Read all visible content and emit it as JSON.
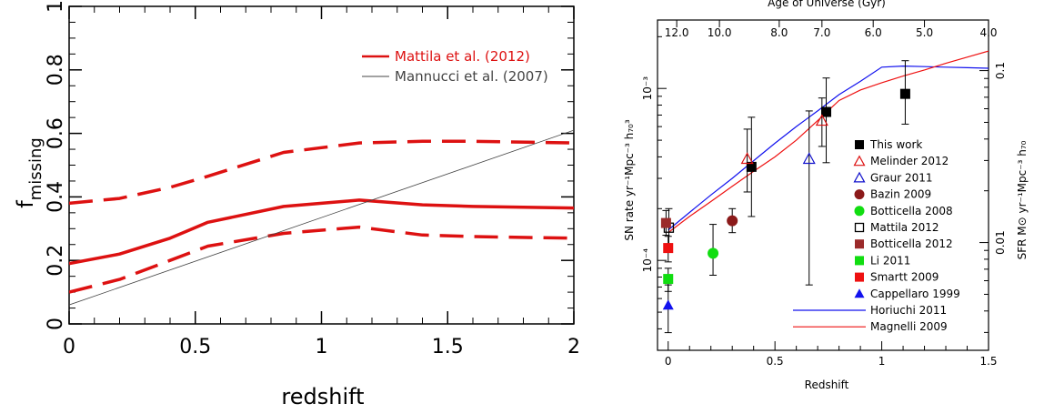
{
  "chart_data": [
    {
      "type": "line",
      "title": "",
      "xlabel": "redshift",
      "ylabel_main": "f",
      "ylabel_sub": "missing",
      "xlim": [
        0,
        2
      ],
      "ylim": [
        0,
        1
      ],
      "x_ticks": [
        0,
        0.5,
        1,
        1.5,
        2
      ],
      "x_tick_labels": [
        "0",
        "0.5",
        "1",
        "1.5",
        "2"
      ],
      "y_ticks": [
        0,
        0.2,
        0.4,
        0.6,
        0.8,
        1
      ],
      "y_tick_labels": [
        "0",
        "0.2",
        "0.4",
        "0.6",
        "0.8",
        "1"
      ],
      "legend_position": "top-right",
      "series": [
        {
          "name": "Mattila et al. (2012)",
          "style": "solid",
          "color": "#dd1111",
          "x": [
            0,
            0.2,
            0.4,
            0.55,
            0.85,
            1.0,
            1.15,
            1.4,
            1.6,
            2.0
          ],
          "y": [
            0.19,
            0.22,
            0.27,
            0.32,
            0.37,
            0.38,
            0.39,
            0.375,
            0.37,
            0.365
          ]
        },
        {
          "name": "",
          "style": "dashed",
          "color": "#dd1111",
          "x": [
            0,
            0.2,
            0.4,
            0.55,
            0.85,
            1.0,
            1.15,
            1.4,
            1.6,
            2.0
          ],
          "y": [
            0.38,
            0.395,
            0.43,
            0.465,
            0.54,
            0.555,
            0.57,
            0.575,
            0.575,
            0.57
          ]
        },
        {
          "name": "",
          "style": "dashed",
          "color": "#dd1111",
          "x": [
            0,
            0.2,
            0.4,
            0.55,
            0.85,
            1.0,
            1.15,
            1.4,
            1.6,
            2.0
          ],
          "y": [
            0.1,
            0.14,
            0.2,
            0.245,
            0.285,
            0.295,
            0.305,
            0.28,
            0.275,
            0.27
          ]
        },
        {
          "name": "Mannucci et al. (2007)",
          "style": "solid",
          "color": "#444444",
          "x": [
            0,
            2
          ],
          "y": [
            0.06,
            0.61
          ]
        }
      ]
    },
    {
      "type": "scatter",
      "title": "",
      "top_axis_label": "Age of Universe (Gyr)",
      "top_ticks": [
        {
          "z": 0.04,
          "label": "12.0"
        },
        {
          "z": 0.24,
          "label": "10.0"
        },
        {
          "z": 0.52,
          "label": "8.0"
        },
        {
          "z": 0.72,
          "label": "7.0"
        },
        {
          "z": 0.96,
          "label": "6.0"
        },
        {
          "z": 1.2,
          "label": "5.0"
        },
        {
          "z": 1.5,
          "label": "4.0"
        }
      ],
      "xlabel": "Redshift",
      "ylabel": "SN rate yr⁻¹Mpc⁻³ h₇₀³",
      "ylabel_right": "SFR M⊙ yr⁻¹Mpc⁻³ h₇₀",
      "xlim": [
        -0.05,
        1.5
      ],
      "ylim": [
        3e-05,
        0.0025
      ],
      "y_scale": "log",
      "x_ticks": [
        0,
        0.5,
        1,
        1.5
      ],
      "x_tick_labels": [
        "0",
        "0.5",
        "1",
        "1.5"
      ],
      "y_ticks_major": [
        0.0001,
        0.001
      ],
      "y_tick_labels": [
        "10⁻⁴",
        "10⁻³"
      ],
      "right_ticks": [
        {
          "rate": 0.000127,
          "label": "0.01"
        },
        {
          "rate": 0.00127,
          "label": "0.1"
        }
      ],
      "legend_position": "right",
      "series": [
        {
          "name": "This work",
          "marker": "square-filled",
          "color": "#000000",
          "points": [
            {
              "x": 0.39,
              "y": 0.00035,
              "lo": 0.00018,
              "hi": 0.00068
            },
            {
              "x": 0.74,
              "y": 0.00073,
              "lo": 0.00037,
              "hi": 0.00115
            },
            {
              "x": 1.11,
              "y": 0.00093,
              "lo": 0.00062,
              "hi": 0.00145
            }
          ]
        },
        {
          "name": "Melinder 2012",
          "marker": "triangle-open",
          "color": "#dd1111",
          "points": [
            {
              "x": 0.37,
              "y": 0.00039,
              "lo": 0.00025,
              "hi": 0.00058
            },
            {
              "x": 0.72,
              "y": 0.00065,
              "lo": 0.00046,
              "hi": 0.00088
            }
          ]
        },
        {
          "name": "Graur 2011",
          "marker": "triangle-open",
          "color": "#1111cc",
          "points": [
            {
              "x": 0.66,
              "y": 0.00039,
              "lo": 7.2e-05,
              "hi": 0.00074
            }
          ]
        },
        {
          "name": "Bazin 2009",
          "marker": "circle-filled",
          "color": "#8b1a1a",
          "points": [
            {
              "x": 0.3,
              "y": 0.00017,
              "lo": 0.000145,
              "hi": 0.0002
            }
          ]
        },
        {
          "name": "Botticella 2008",
          "marker": "circle-filled",
          "color": "#11dd11",
          "points": [
            {
              "x": 0.21,
              "y": 0.00011,
              "lo": 8.2e-05,
              "hi": 0.000162
            }
          ]
        },
        {
          "name": "Mattila 2012",
          "marker": "square-open",
          "color": "#000000",
          "points": [
            {
              "x": 0.003,
              "y": 0.000155,
              "lo": 0.000125,
              "hi": 0.0002
            }
          ]
        },
        {
          "name": "Botticella 2012",
          "marker": "square-filled",
          "color": "#9b2a2a",
          "points": [
            {
              "x": -0.01,
              "y": 0.000165,
              "lo": 0.00014,
              "hi": 0.000195
            }
          ]
        },
        {
          "name": "Li 2011",
          "marker": "square-filled",
          "color": "#11dd11",
          "points": [
            {
              "x": 0.0,
              "y": 7.8e-05,
              "lo": 6.6e-05,
              "hi": 9e-05
            }
          ]
        },
        {
          "name": "Smartt 2009",
          "marker": "square-filled",
          "color": "#ee1111",
          "points": [
            {
              "x": 0.0,
              "y": 0.000118,
              "lo": 9.8e-05,
              "hi": 0.000138
            }
          ]
        },
        {
          "name": "Cappellaro 1999",
          "marker": "triangle-filled",
          "color": "#1111ee",
          "points": [
            {
              "x": 0.0,
              "y": 5.5e-05,
              "lo": 3.8e-05,
              "hi": 7.2e-05
            }
          ]
        }
      ],
      "lines": [
        {
          "name": "Horiuchi 2011",
          "color": "#1111ee",
          "x": [
            0,
            0.1,
            0.2,
            0.3,
            0.4,
            0.5,
            0.6,
            0.7,
            0.8,
            0.9,
            1.0,
            1.1,
            1.2,
            1.3,
            1.4,
            1.5
          ],
          "y": [
            0.00015,
            0.00019,
            0.00024,
            0.0003,
            0.00038,
            0.00048,
            0.0006,
            0.00074,
            0.00092,
            0.0011,
            0.00133,
            0.00135,
            0.00134,
            0.00133,
            0.00132,
            0.00131
          ]
        },
        {
          "name": "Magnelli 2009",
          "color": "#ee1111",
          "x": [
            0,
            0.1,
            0.2,
            0.3,
            0.4,
            0.5,
            0.6,
            0.7,
            0.8,
            0.9,
            1.0,
            1.1,
            1.2,
            1.3,
            1.4,
            1.5
          ],
          "y": [
            0.000145,
            0.00018,
            0.00022,
            0.00027,
            0.00033,
            0.0004,
            0.0005,
            0.00065,
            0.00085,
            0.00098,
            0.00108,
            0.00118,
            0.00128,
            0.0014,
            0.00152,
            0.00165
          ]
        }
      ]
    }
  ]
}
